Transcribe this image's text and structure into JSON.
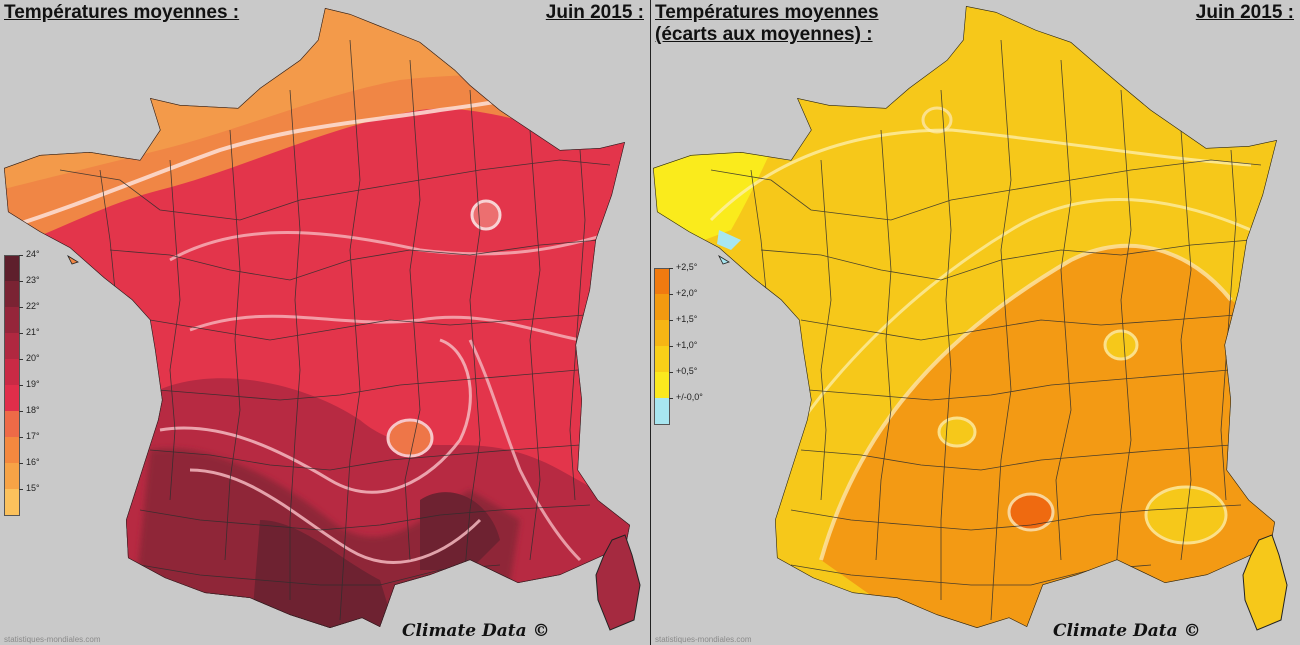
{
  "left_panel": {
    "title": "Températures moyennes :",
    "date": "Juin 2015 :",
    "legend": {
      "labels": [
        "24°",
        "23°",
        "22°",
        "21°",
        "20°",
        "19°",
        "18°",
        "17°",
        "16°",
        "15°"
      ],
      "colors": [
        "#5e1f2c",
        "#7a2333",
        "#95253a",
        "#b02840",
        "#c92a45",
        "#e02e4a",
        "#ee6a47",
        "#f4883f",
        "#f7a346",
        "#fbc15c"
      ]
    },
    "credit": "Climate Data ©",
    "source": "statistiques-mondiales.com"
  },
  "right_panel": {
    "title_line1": "Températures moyennes",
    "title_line2": "(écarts aux moyennes) :",
    "date": "Juin 2015 :",
    "legend": {
      "labels": [
        "+2,5°",
        "+2,0°",
        "+1,5°",
        "+1,0°",
        "+0,5°",
        "+/-0,0°"
      ],
      "colors": [
        "#f07a10",
        "#f39a10",
        "#f6b514",
        "#f9cf18",
        "#fbe91e",
        "#a8e6f0"
      ]
    },
    "credit": "Climate Data ©",
    "source": "statistiques-mondiales.com"
  }
}
